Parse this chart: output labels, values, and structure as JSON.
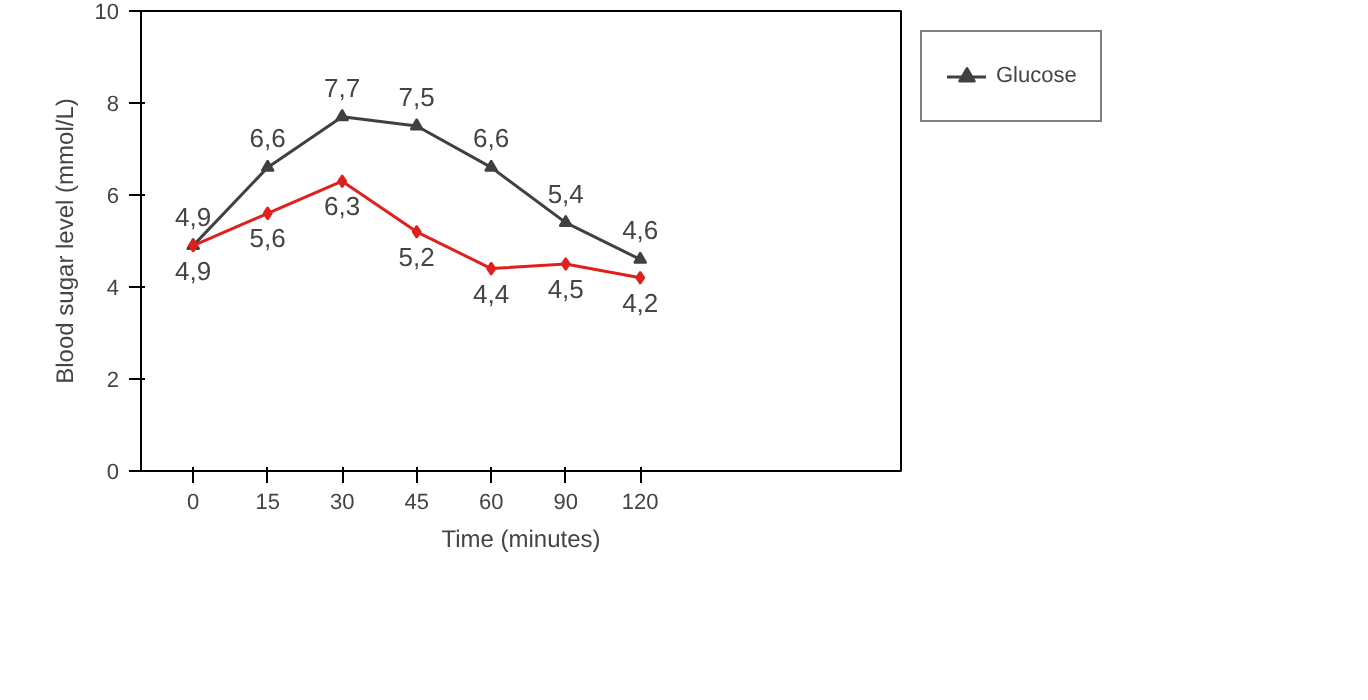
{
  "chart_data": {
    "type": "line",
    "xlabel": "Time (minutes)",
    "ylabel": "Blood sugar level (mmol/L)",
    "categories": [
      "0",
      "15",
      "30",
      "45",
      "60",
      "90",
      "120"
    ],
    "ylim": [
      0,
      10
    ],
    "yticks": [
      0,
      2,
      4,
      6,
      8,
      10
    ],
    "grid": false,
    "legend": "right",
    "series": [
      {
        "name": "Glucose",
        "color": "#404040",
        "marker": "triangle",
        "values": [
          4.9,
          6.6,
          7.7,
          7.5,
          6.6,
          5.4,
          4.6
        ],
        "value_labels": [
          "4,9",
          "6,6",
          "7,7",
          "7,5",
          "6,6",
          "5,4",
          "4,6"
        ]
      },
      {
        "color": "#e0201b",
        "marker": "diamond",
        "values": [
          4.9,
          5.6,
          6.3,
          5.2,
          4.4,
          4.5,
          4.2
        ],
        "value_labels": [
          "4,9",
          "5,6",
          "6,3",
          "5,2",
          "4,4",
          "4,5",
          "4,2"
        ]
      }
    ]
  }
}
